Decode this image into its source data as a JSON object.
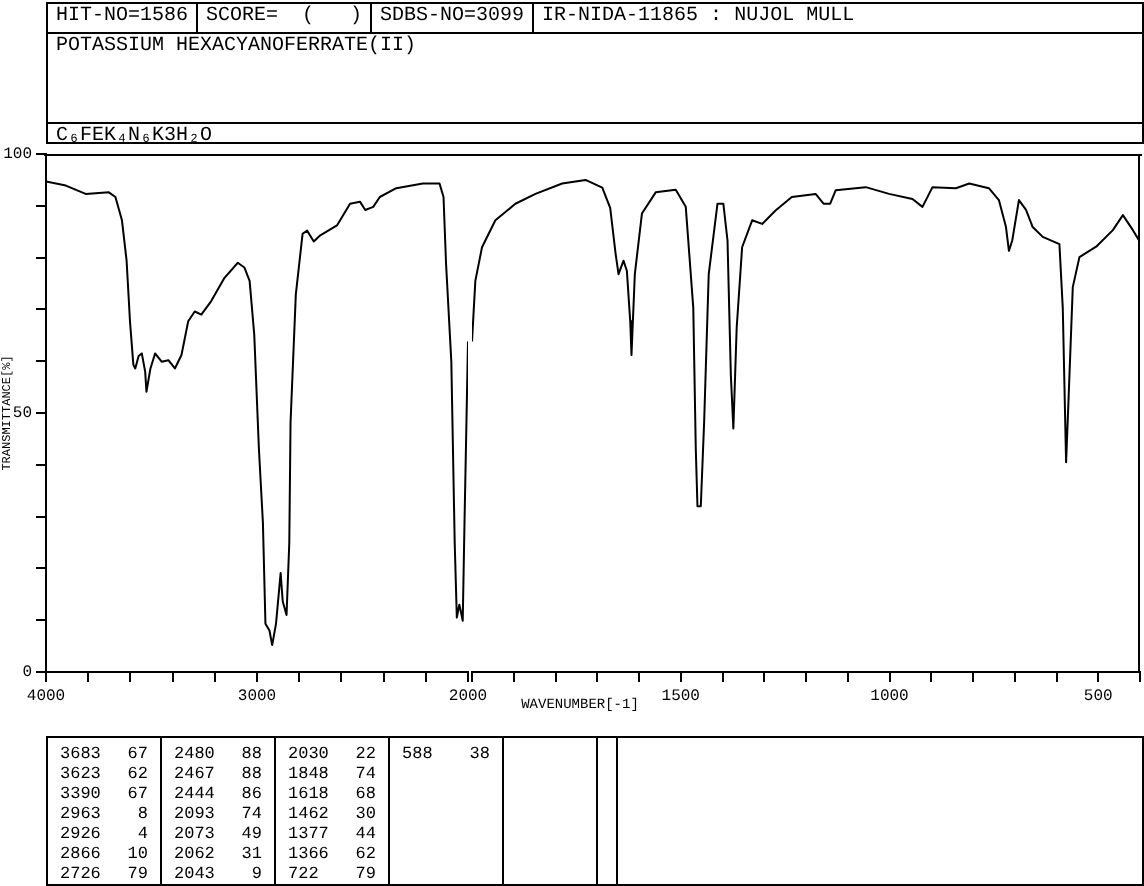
{
  "chart_data": [
    {
      "type": "line",
      "title": "POTASSIUM HEXACYANOFERRATE(II)",
      "subtitle": "C₆FEK₄N₆K3H₂O",
      "ylabel": "TRANSMITTANCE[%]",
      "annotations": [
        "HIT-NO=1586",
        "SCORE=  (   )",
        "SDBS-NO=3099",
        "IR-NIDA-11865 : NUJOL MULL",
        "3683 67",
        "3623 62",
        "3390 67",
        "2963 8",
        "2926 4",
        "2866 10",
        "2726 79",
        "2480 88",
        "2467 88",
        "2444 86",
        "2093 74",
        "2073 49",
        "2062 31",
        "2043 9",
        "2030 22",
        "1848 74",
        "1618 68",
        "1462 30",
        "1377 44",
        "1366 62",
        "722 79",
        "588 38"
      ],
      "xlim": [
        4000,
        2000
      ],
      "xticks": [
        4000,
        {
          "value": 3800,
          "label": null
        },
        {
          "value": 3600,
          "label": null
        },
        {
          "value": 3400,
          "label": null
        },
        {
          "value": 3200,
          "label": null
        },
        3000,
        {
          "value": 2800,
          "label": null
        },
        {
          "value": 2600,
          "label": null
        },
        {
          "value": 2400,
          "label": null
        },
        {
          "value": 2200,
          "label": null
        },
        2000
      ],
      "ylim": [
        0,
        100
      ],
      "yticks": [
        0,
        {
          "value": 10,
          "label": null
        },
        {
          "value": 20,
          "label": null
        },
        {
          "value": 30,
          "label": null
        },
        {
          "value": 40,
          "label": null
        },
        50,
        {
          "value": 60,
          "label": null
        },
        {
          "value": 70,
          "label": null
        },
        {
          "value": 80,
          "label": null
        },
        {
          "value": 90,
          "label": null
        },
        100
      ],
      "grid": false,
      "legend": false,
      "marker": "none",
      "line_style": "solid",
      "series": [
        {
          "color": "#000000",
          "x": [
            4000,
            3906,
            3812,
            3702,
            3671,
            3640,
            3618,
            3602,
            3586,
            3577,
            3561,
            3546,
            3530,
            3524,
            3505,
            3483,
            3452,
            3420,
            3389,
            3358,
            3326,
            3295,
            3264,
            3217,
            3154,
            3091,
            3060,
            3035,
            3013,
            2991,
            2972,
            2960,
            2941,
            2928,
            2910,
            2888,
            2878,
            2860,
            2847,
            2841,
            2816,
            2784,
            2762,
            2731,
            2700,
            2621,
            2559,
            2512,
            2487,
            2449,
            2418,
            2340,
            2214,
            2135,
            2116,
            2104,
            2079,
            2063,
            2053,
            2041,
            2025,
            2016,
            2000
          ],
          "values": [
            94.7,
            93.9,
            92.3,
            92.6,
            91.7,
            87.2,
            79.4,
            67.7,
            59.3,
            58.6,
            61,
            61.5,
            58,
            54.1,
            58.6,
            61.5,
            59.9,
            60.2,
            58.6,
            61.2,
            67.7,
            69.6,
            69,
            71.6,
            76.1,
            79,
            78.1,
            75.5,
            65.1,
            43.1,
            28.8,
            9.3,
            8,
            5.2,
            9.3,
            19.1,
            13.6,
            11,
            24.9,
            48.2,
            72.9,
            84.6,
            85.2,
            83.1,
            84.3,
            86.2,
            90.4,
            90.8,
            89.2,
            89.8,
            91.7,
            93.4,
            94.3,
            94.3,
            91.7,
            78.8,
            59.9,
            24.9,
            10.5,
            13,
            9.9,
            30.1,
            63.8
          ]
        }
      ]
    },
    {
      "type": "line",
      "xlabel": "WAVENUMBER[-1]",
      "tick_labels": "x",
      "xlim": [
        2000,
        400
      ],
      "xticks": [
        {
          "value": 2000,
          "label": null
        },
        {
          "value": 1900,
          "label": null
        },
        {
          "value": 1800,
          "label": null
        },
        {
          "value": 1700,
          "label": null
        },
        {
          "value": 1600,
          "label": null
        },
        1500,
        {
          "value": 1400,
          "label": null
        },
        {
          "value": 1300,
          "label": null
        },
        {
          "value": 1200,
          "label": null
        },
        {
          "value": 1100,
          "label": null
        },
        1000,
        {
          "value": 900,
          "label": null
        },
        {
          "value": 800,
          "label": null
        },
        {
          "value": 700,
          "label": null
        },
        {
          "value": 600,
          "label": null
        },
        500,
        {
          "value": 400,
          "label": null
        }
      ],
      "ylim": [
        0,
        100
      ],
      "grid": false,
      "legend": false,
      "marker": "none",
      "line_style": "solid",
      "series": [
        {
          "color": "#000000",
          "x": [
            2000,
            1992,
            1976,
            1944,
            1896,
            1848,
            1784,
            1728,
            1688,
            1669,
            1656,
            1649,
            1637,
            1629,
            1621,
            1618,
            1610,
            1593,
            1560,
            1512,
            1488,
            1470,
            1464,
            1460,
            1452,
            1444,
            1433,
            1412,
            1398,
            1388,
            1380,
            1374,
            1366,
            1353,
            1329,
            1305,
            1273,
            1234,
            1177,
            1158,
            1142,
            1129,
            1057,
            1001,
            945,
            921,
            897,
            841,
            809,
            762,
            738,
            721,
            714,
            706,
            690,
            673,
            657,
            633,
            593,
            585,
            577,
            572,
            561,
            545,
            505,
            465,
            441,
            417,
            400
          ],
          "values": [
            63.8,
            75.5,
            82,
            87.2,
            90.4,
            92.3,
            94.3,
            95,
            93.5,
            89.6,
            80.7,
            76.8,
            79.4,
            77.4,
            67.7,
            61.2,
            76.8,
            88.5,
            92.6,
            93.1,
            89.8,
            70.3,
            43.1,
            32,
            32,
            48.2,
            76.8,
            90.4,
            90.4,
            83.3,
            57.3,
            47,
            66.5,
            82,
            87.2,
            86.5,
            89.1,
            91.7,
            92.3,
            90.4,
            90.4,
            93,
            93.6,
            92.3,
            91.3,
            89.8,
            93.6,
            93.4,
            94.3,
            93.4,
            91.1,
            85.9,
            81.3,
            83.3,
            91.1,
            89.2,
            85.9,
            84,
            82.6,
            70.3,
            40.5,
            50.9,
            74.3,
            80.1,
            82.1,
            85.3,
            88.2,
            85.3,
            83
          ]
        }
      ]
    }
  ]
}
